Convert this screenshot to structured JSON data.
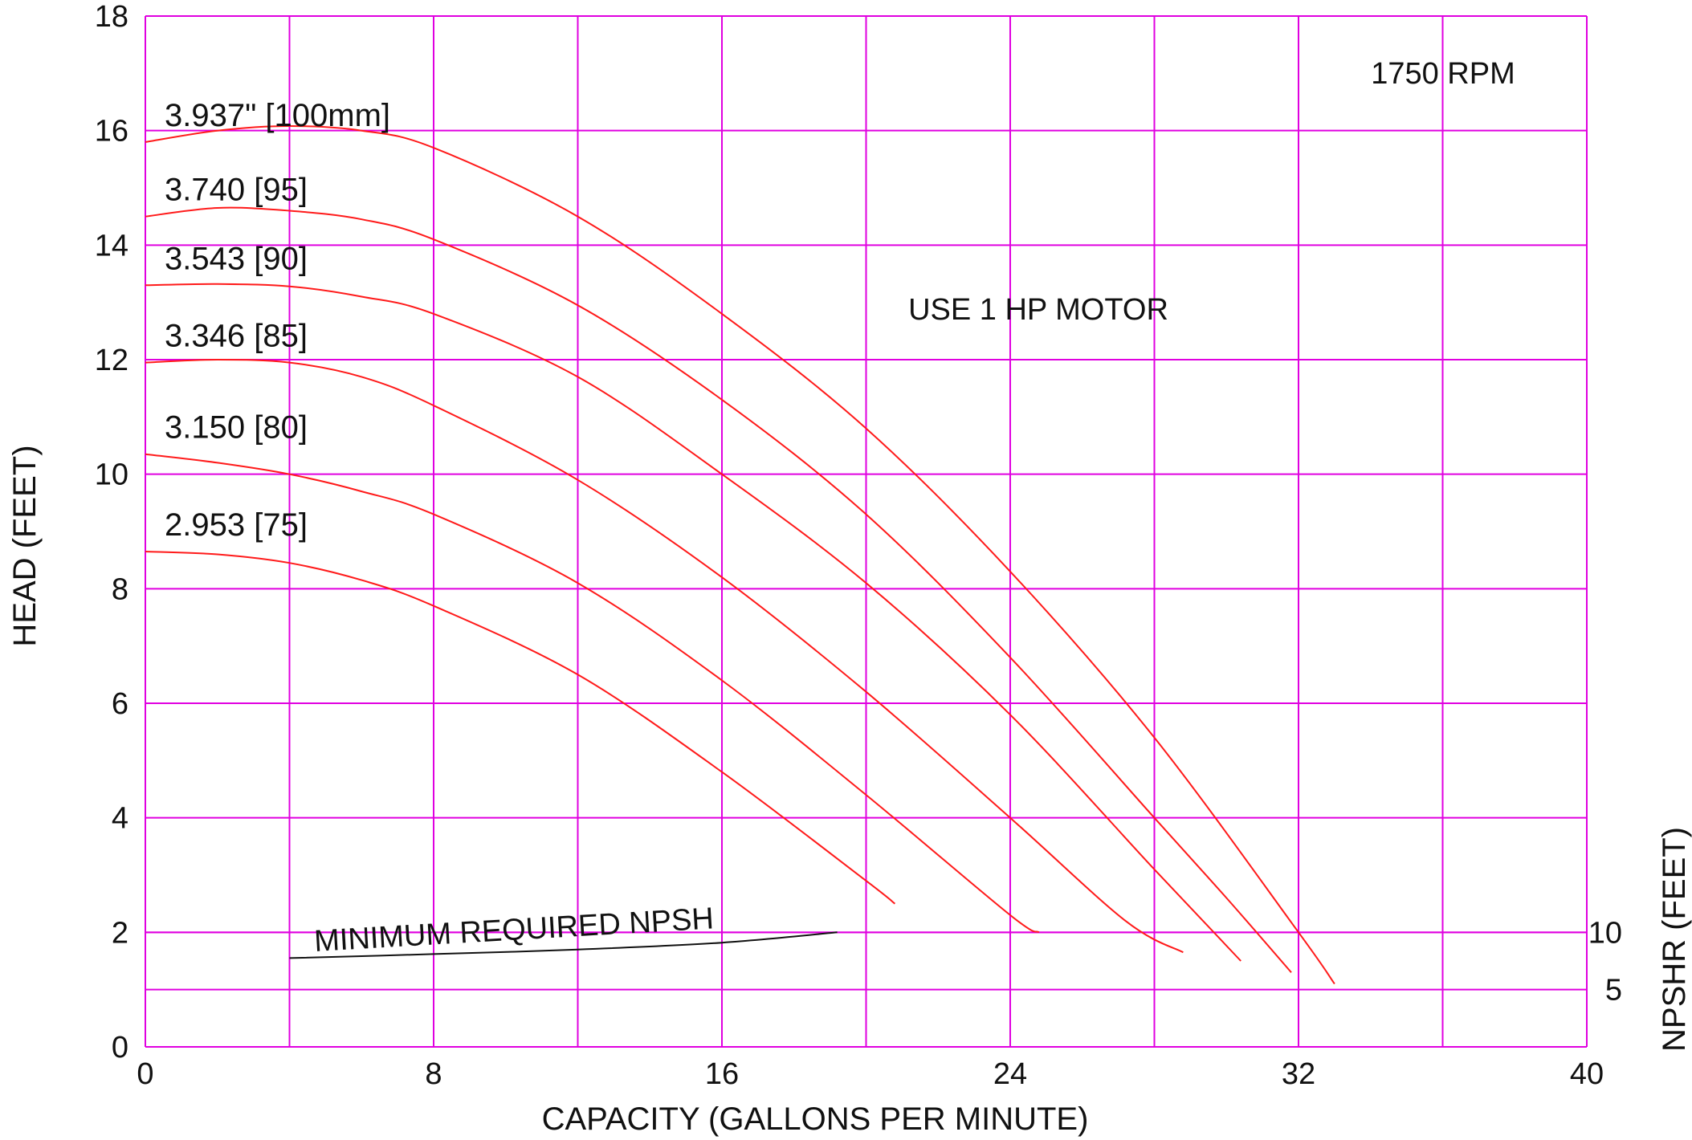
{
  "chart_data": {
    "type": "line",
    "title": "",
    "xlabel": "CAPACITY (GALLONS PER MINUTE)",
    "ylabel": "HEAD (FEET)",
    "y2label": "NPSHR (FEET)",
    "xlim": [
      0,
      40
    ],
    "ylim": [
      0,
      18
    ],
    "x_ticks": [
      "0",
      "8",
      "16",
      "24",
      "32",
      "40"
    ],
    "y_ticks": [
      "0",
      "2",
      "4",
      "6",
      "8",
      "10",
      "12",
      "14",
      "16",
      "18"
    ],
    "y2_ticks": [
      {
        "label": "5",
        "head": 1
      },
      {
        "label": "10",
        "head": 2
      }
    ],
    "grid": true,
    "grid_color": "#e000e0",
    "curve_color": "#ff1a1a",
    "npsh_color": "#111111",
    "annotations": {
      "rpm": "1750 RPM",
      "motor": "USE 1 HP MOTOR",
      "npsh": "MINIMUM REQUIRED NPSH"
    },
    "series": [
      {
        "name": "3.937\" [100mm]",
        "x": [
          0,
          2,
          4,
          6,
          8,
          12,
          16,
          20,
          24,
          28,
          32,
          33
        ],
        "y": [
          15.8,
          16.0,
          16.08,
          16.0,
          15.7,
          14.5,
          12.8,
          10.8,
          8.3,
          5.4,
          2.0,
          1.1
        ]
      },
      {
        "name": "3.740 [95]",
        "x": [
          0,
          2,
          4,
          6,
          8,
          12,
          16,
          20,
          24,
          28,
          30,
          31.8
        ],
        "y": [
          14.5,
          14.65,
          14.6,
          14.45,
          14.1,
          12.95,
          11.3,
          9.3,
          6.8,
          4.0,
          2.6,
          1.3
        ]
      },
      {
        "name": "3.543 [90]",
        "x": [
          0,
          2,
          4,
          6,
          8,
          12,
          16,
          20,
          24,
          28,
          30.4
        ],
        "y": [
          13.3,
          13.32,
          13.28,
          13.1,
          12.8,
          11.7,
          10.0,
          8.1,
          5.8,
          3.1,
          1.5
        ]
      },
      {
        "name": "3.346 [85]",
        "x": [
          0,
          2,
          4,
          6,
          8,
          12,
          16,
          20,
          24,
          27.2,
          28.8
        ],
        "y": [
          11.95,
          12.0,
          11.95,
          11.7,
          11.2,
          9.9,
          8.2,
          6.2,
          4.0,
          2.2,
          1.65
        ]
      },
      {
        "name": "3.150 [80]",
        "x": [
          0,
          2,
          4,
          6,
          8,
          12,
          16,
          20,
          24,
          24.8
        ],
        "y": [
          10.35,
          10.2,
          10.0,
          9.7,
          9.3,
          8.1,
          6.4,
          4.4,
          2.3,
          2.0
        ]
      },
      {
        "name": "2.953 [75]",
        "x": [
          0,
          2,
          4,
          6,
          8,
          12,
          16,
          20,
          20.8
        ],
        "y": [
          8.65,
          8.6,
          8.45,
          8.15,
          7.7,
          6.5,
          4.8,
          2.9,
          2.5
        ]
      }
    ],
    "npsh_curve": {
      "x": [
        4,
        8,
        12,
        16,
        19.2
      ],
      "y": [
        1.55,
        1.62,
        1.7,
        1.82,
        2.0
      ]
    }
  }
}
